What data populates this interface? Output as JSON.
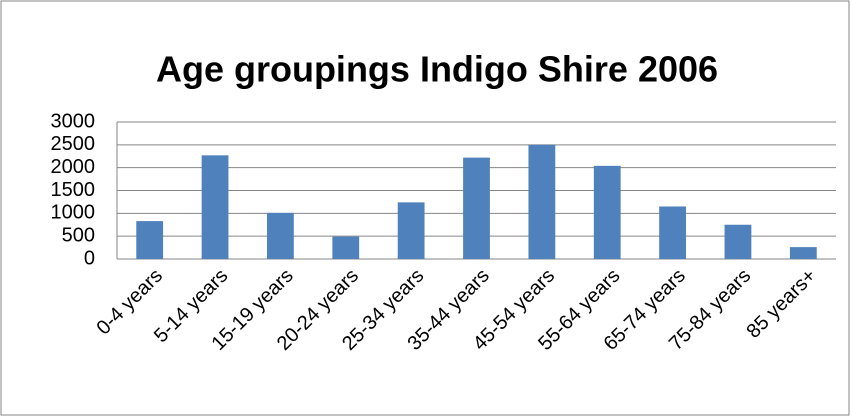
{
  "chart_data": {
    "type": "bar",
    "title": "Age groupings Indigo Shire 2006",
    "categories": [
      "0-4 years",
      "5-14 years",
      "15-19 years",
      "20-24 years",
      "25-34 years",
      "35-44 years",
      "45-54 years",
      "55-64 years",
      "65-74 years",
      "75-84 years",
      "85 years+"
    ],
    "values": [
      830,
      2270,
      1010,
      490,
      1240,
      2220,
      2500,
      2040,
      1150,
      750,
      260
    ],
    "color": "#4f81bd",
    "ylim": [
      0,
      3000
    ],
    "yticks": [
      0,
      500,
      1000,
      1500,
      2000,
      2500,
      3000
    ],
    "grid": true
  }
}
